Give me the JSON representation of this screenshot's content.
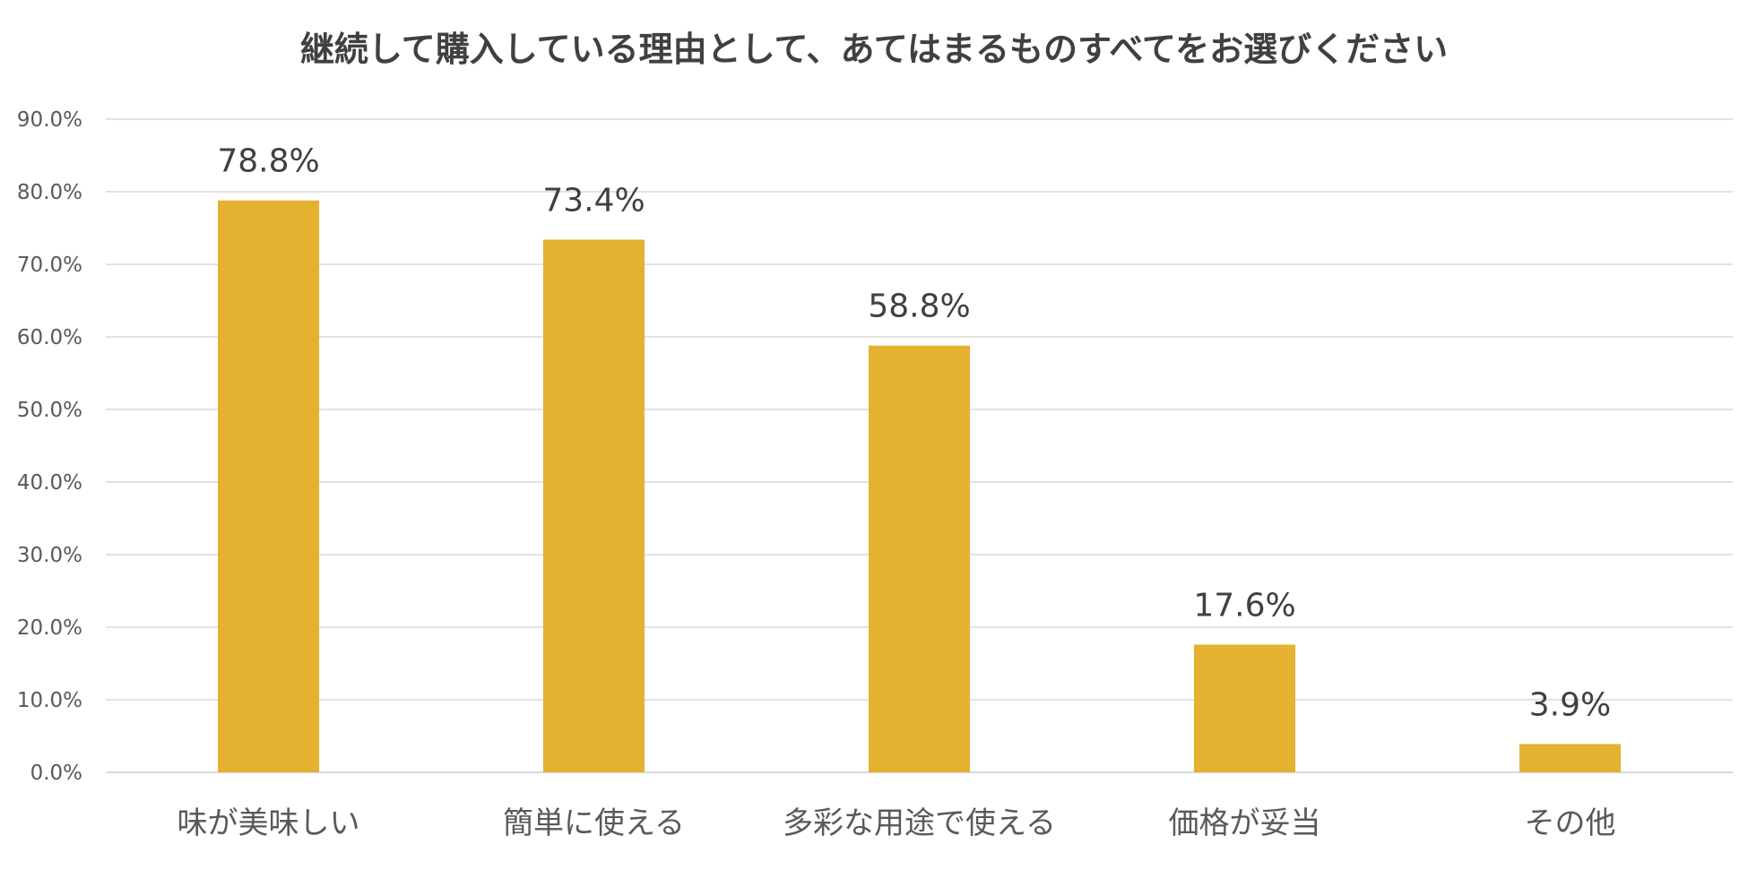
{
  "chart_data": {
    "type": "bar",
    "title": "継続して購入している理由として、あてはまるものすべてをお選びください",
    "xlabel": "",
    "ylabel": "",
    "categories": [
      "味が美味しい",
      "簡単に使える",
      "多彩な用途で使える",
      "価格が妥当",
      "その他"
    ],
    "values": [
      78.8,
      73.4,
      58.8,
      17.6,
      3.9
    ],
    "data_labels": [
      "78.8%",
      "73.4%",
      "58.8%",
      "17.6%",
      "3.9%"
    ],
    "ylim": [
      0,
      90
    ],
    "yticks": [
      0,
      10,
      20,
      30,
      40,
      50,
      60,
      70,
      80,
      90
    ],
    "ytick_labels": [
      "0.0%",
      "10.0%",
      "20.0%",
      "30.0%",
      "40.0%",
      "50.0%",
      "60.0%",
      "70.0%",
      "80.0%",
      "90.0%"
    ],
    "grid": true,
    "legend": "none",
    "bar_color": "#E5B131"
  }
}
